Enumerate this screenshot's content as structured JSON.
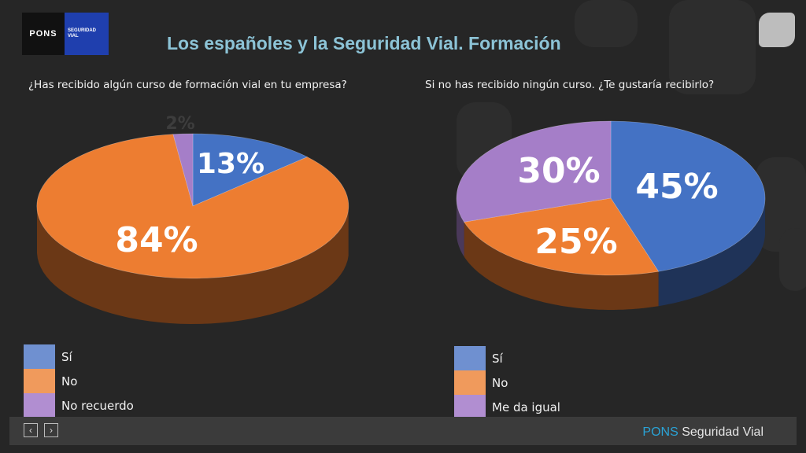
{
  "slide": {
    "title": "Los españoles y la Seguridad Vial. Formación",
    "logo_left": "PONS",
    "logo_right_line1": "SEGURIDAD",
    "logo_right_line2": "VIAL"
  },
  "footer": {
    "brand_part1": "PONS",
    "brand_part2": "Seguridad Vial",
    "prev_icon": "chevron-left-icon",
    "next_icon": "chevron-right-icon"
  },
  "chart_data": [
    {
      "type": "pie",
      "title": "¿Has recibido algún curso de formación vial en tu empresa?",
      "categories": [
        "Sí",
        "No",
        "No recuerdo"
      ],
      "values": [
        13,
        84,
        2
      ],
      "value_labels": [
        "13%",
        "84%",
        "2%"
      ],
      "colors": [
        "#4472c4",
        "#ed7d31",
        "#a57ec8"
      ],
      "legend": "bottom-left"
    },
    {
      "type": "pie",
      "title": "Si no has recibido ningún curso. ¿Te gustaría recibirlo?",
      "categories": [
        "Sí",
        "No",
        "Me da igual"
      ],
      "values": [
        45,
        25,
        30
      ],
      "value_labels": [
        "45%",
        "25%",
        "30%"
      ],
      "colors": [
        "#4472c4",
        "#ed7d31",
        "#a57ec8"
      ],
      "legend": "bottom-left"
    }
  ]
}
